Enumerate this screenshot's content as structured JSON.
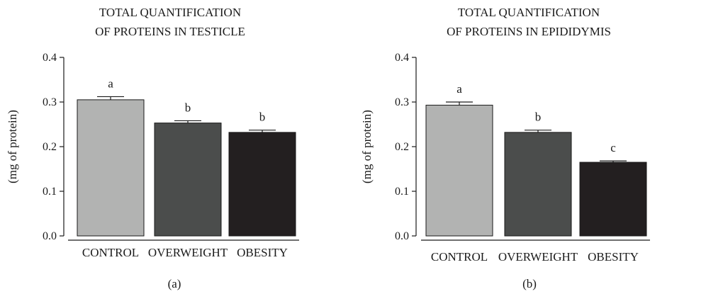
{
  "chart_data": [
    {
      "type": "bar",
      "title_lines": [
        "TOTAL QUANTIFICATION",
        "OF PROTEINS IN TESTICLE"
      ],
      "ylabel": "(mg of protein)",
      "xlabel": "",
      "categories": [
        "CONTROL",
        "OVERWEIGHT",
        "OBESITY"
      ],
      "values": [
        0.305,
        0.253,
        0.232
      ],
      "errors": [
        0.007,
        0.005,
        0.005
      ],
      "significance": [
        "a",
        "b",
        "b"
      ],
      "bar_colors": [
        "#b2b3b2",
        "#4b4d4c",
        "#231f20"
      ],
      "ylim": [
        0,
        0.4
      ],
      "yticks": [
        0.0,
        0.1,
        0.2,
        0.3,
        0.4
      ],
      "ytick_labels": [
        "0.0",
        "0.1",
        "0.2",
        "0.3",
        "0.4"
      ],
      "panel_label": "(a)",
      "grid": false
    },
    {
      "type": "bar",
      "title_lines": [
        "TOTAL QUANTIFICATION",
        "OF PROTEINS IN EPIDIDYMIS"
      ],
      "ylabel": "(mg of protein)",
      "xlabel": "",
      "categories": [
        "CONTROL",
        "OVERWEIGHT",
        "OBESITY"
      ],
      "values": [
        0.293,
        0.232,
        0.165
      ],
      "errors": [
        0.007,
        0.005,
        0.003
      ],
      "significance": [
        "a",
        "b",
        "c"
      ],
      "bar_colors": [
        "#b2b3b2",
        "#4b4d4c",
        "#231f20"
      ],
      "ylim": [
        0,
        0.4
      ],
      "yticks": [
        0.0,
        0.1,
        0.2,
        0.3,
        0.4
      ],
      "ytick_labels": [
        "0.0",
        "0.1",
        "0.2",
        "0.3",
        "0.4"
      ],
      "panel_label": "(b)",
      "grid": false
    }
  ]
}
